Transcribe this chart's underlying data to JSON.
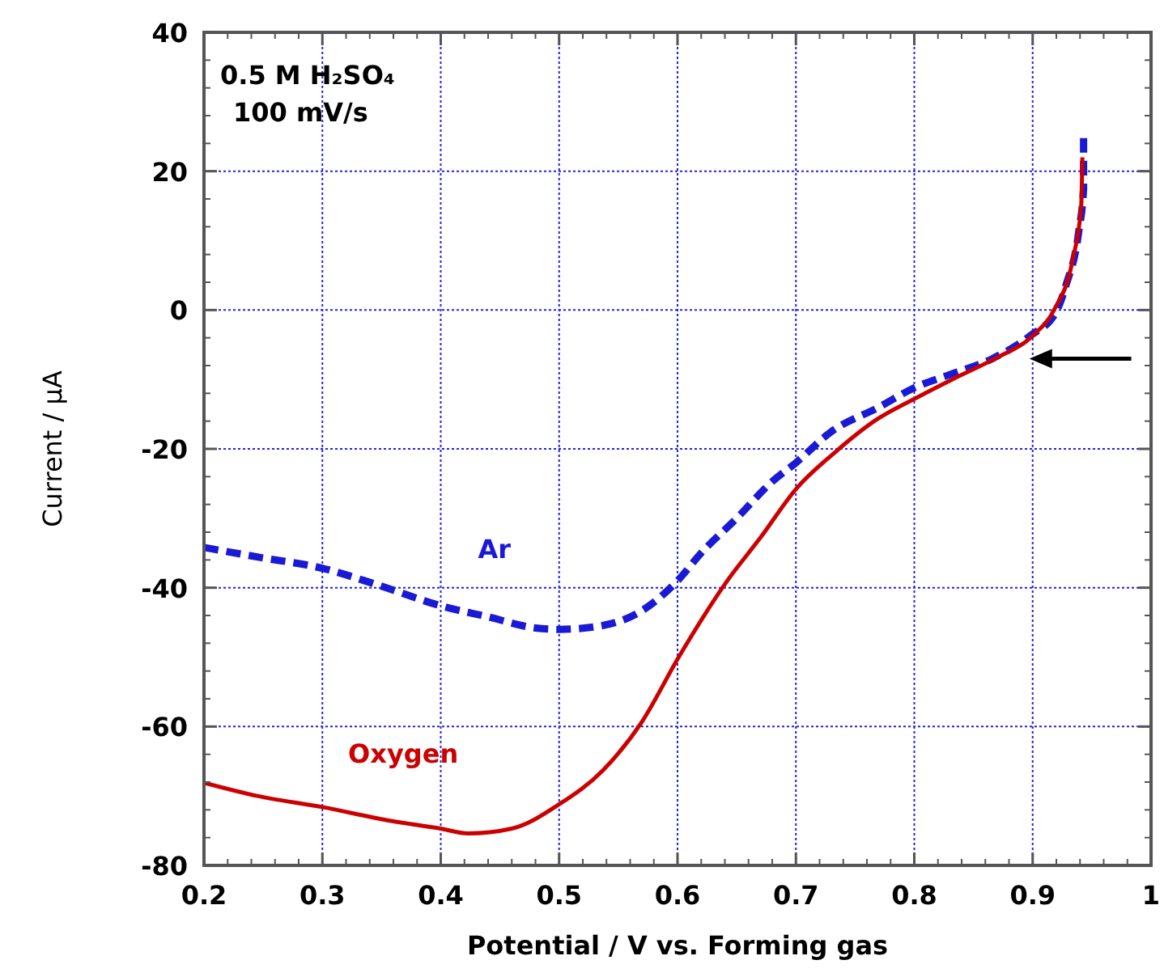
{
  "chart_data": {
    "type": "line",
    "xlabel": "Potential / V vs. Forming gas",
    "ylabel": "Current / μA",
    "annotations": [
      "0.5 M H₂SO₄",
      "100 mV/s"
    ],
    "xlim": [
      0.2,
      1
    ],
    "xticks": [
      0.2,
      0.3,
      0.4,
      0.5,
      0.6,
      0.7,
      0.8,
      0.9,
      1
    ],
    "ylim": [
      -80,
      40
    ],
    "yticks": [
      -80,
      -60,
      -40,
      -20,
      0,
      20,
      40
    ],
    "grid": true,
    "series": [
      {
        "name": "Ar",
        "color": "#1a1ad6",
        "line_style": "dashed",
        "x": [
          0.2,
          0.246,
          0.3,
          0.345,
          0.4,
          0.44,
          0.48,
          0.5,
          0.535,
          0.57,
          0.6,
          0.62,
          0.65,
          0.68,
          0.7,
          0.73,
          0.77,
          0.8,
          0.83,
          0.866,
          0.898,
          0.92,
          0.928,
          0.939,
          0.943,
          0.943
        ],
        "values": [
          -34.2,
          -35.6,
          -37.2,
          -39.5,
          -42.6,
          -44.2,
          -45.8,
          -46,
          -45.5,
          -43.3,
          -39,
          -35,
          -30,
          -24.7,
          -22,
          -17.5,
          -14,
          -11.2,
          -9.3,
          -7,
          -3.7,
          -0.2,
          3.5,
          11.4,
          17.5,
          25
        ]
      },
      {
        "name": "Oxygen",
        "color": "#cc0000",
        "line_style": "solid",
        "x": [
          0.2,
          0.245,
          0.3,
          0.355,
          0.4,
          0.423,
          0.46,
          0.5,
          0.537,
          0.57,
          0.601,
          0.642,
          0.67,
          0.7,
          0.733,
          0.768,
          0.8,
          0.832,
          0.868,
          0.9,
          0.918,
          0.934,
          0.941,
          0.942
        ],
        "values": [
          -68.1,
          -70,
          -71.6,
          -73.5,
          -74.7,
          -75.4,
          -74.7,
          -71.2,
          -66.3,
          -59.3,
          -50,
          -39,
          -32.8,
          -25.8,
          -20.5,
          -15.8,
          -12.8,
          -10,
          -7,
          -3.7,
          0,
          7.4,
          15,
          22
        ]
      }
    ]
  }
}
